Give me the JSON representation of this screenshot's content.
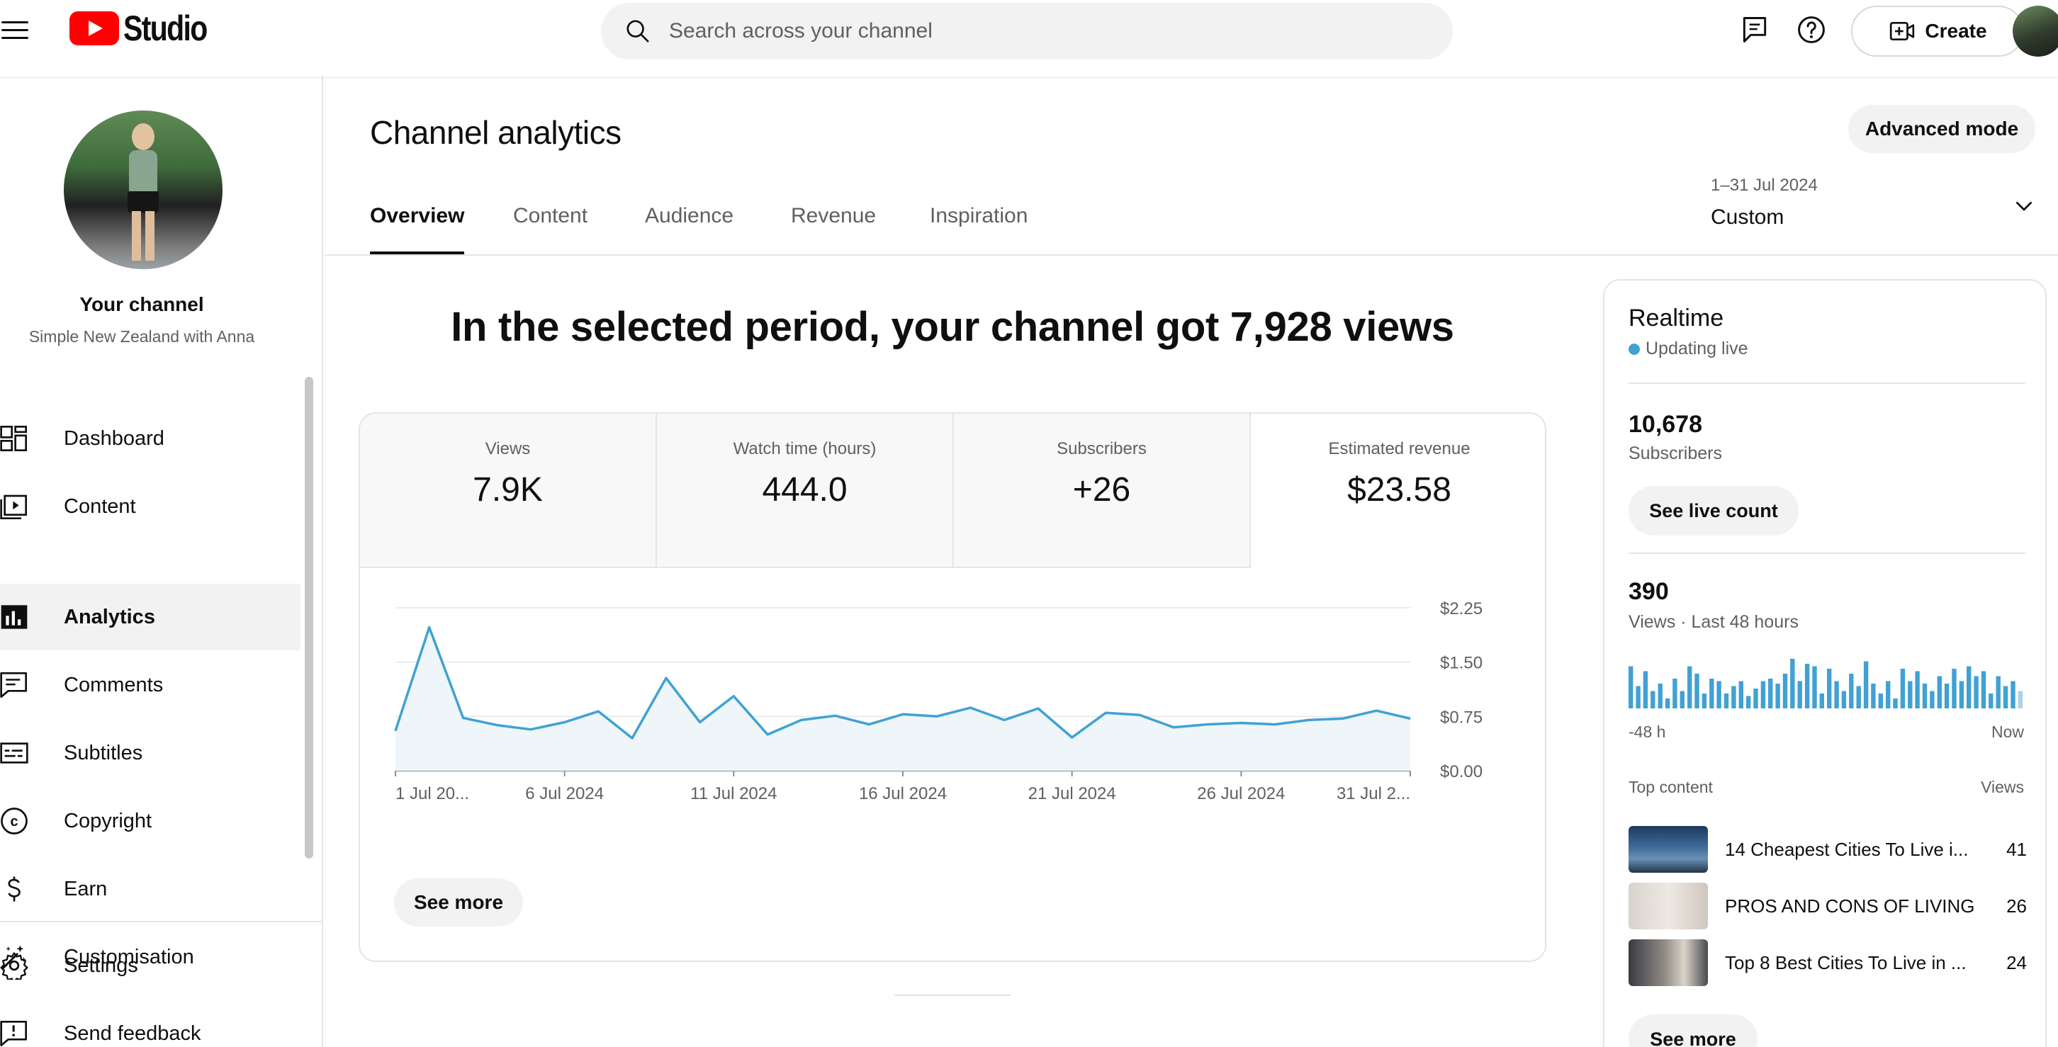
{
  "header": {
    "logo_text": "Studio",
    "search_placeholder": "Search across your channel",
    "create_label": "Create"
  },
  "sidebar": {
    "your_channel": "Your channel",
    "channel_name": "Simple New Zealand with Anna",
    "items": [
      {
        "label": "Dashboard",
        "icon": "dashboard-icon",
        "active": false
      },
      {
        "label": "Content",
        "icon": "content-icon",
        "active": false
      },
      {
        "label": "Analytics",
        "icon": "analytics-icon",
        "active": true
      },
      {
        "label": "Comments",
        "icon": "comments-icon",
        "active": false
      },
      {
        "label": "Subtitles",
        "icon": "subtitles-icon",
        "active": false
      },
      {
        "label": "Copyright",
        "icon": "copyright-icon",
        "active": false
      },
      {
        "label": "Earn",
        "icon": "earn-icon",
        "active": false
      },
      {
        "label": "Customisation",
        "icon": "customisation-icon",
        "active": false
      }
    ],
    "bottom_items": [
      {
        "label": "Settings",
        "icon": "settings-icon"
      },
      {
        "label": "Send feedback",
        "icon": "feedback-icon"
      }
    ]
  },
  "main": {
    "title": "Channel analytics",
    "advanced_mode": "Advanced mode",
    "tabs": [
      "Overview",
      "Content",
      "Audience",
      "Revenue",
      "Inspiration"
    ],
    "active_tab": "Overview",
    "date_range": {
      "sub": "1–31 Jul 2024",
      "value": "Custom"
    },
    "headline": "In the selected period, your channel got 7,928 views",
    "metrics": [
      {
        "label": "Views",
        "value": "7.9K"
      },
      {
        "label": "Watch time (hours)",
        "value": "444.0"
      },
      {
        "label": "Subscribers",
        "value": "+26"
      },
      {
        "label": "Estimated revenue",
        "value": "$23.58"
      }
    ],
    "see_more": "See more"
  },
  "chart_data": {
    "type": "area",
    "series": [
      {
        "name": "Estimated revenue",
        "values": [
          0.55,
          1.98,
          0.73,
          0.63,
          0.57,
          0.67,
          0.82,
          0.45,
          1.28,
          0.67,
          1.03,
          0.5,
          0.7,
          0.76,
          0.64,
          0.78,
          0.75,
          0.87,
          0.7,
          0.86,
          0.46,
          0.8,
          0.77,
          0.6,
          0.64,
          0.66,
          0.64,
          0.7,
          0.72,
          0.83,
          0.72
        ]
      }
    ],
    "x_tick_labels": [
      "1 Jul 20...",
      "6 Jul 2024",
      "11 Jul 2024",
      "16 Jul 2024",
      "21 Jul 2024",
      "26 Jul 2024",
      "31 Jul 2..."
    ],
    "x_tick_index": [
      0,
      5,
      10,
      15,
      20,
      25,
      30
    ],
    "y_tick_labels": [
      "$2.25",
      "$1.50",
      "$0.75",
      "$0.00"
    ],
    "y_tick_values": [
      2.25,
      1.5,
      0.75,
      0
    ],
    "ylim": [
      0,
      2.25
    ],
    "grid": true,
    "line_color": "#41a1d3",
    "fill_color": "#eef6fa"
  },
  "realtime": {
    "title": "Realtime",
    "live_text": "Updating live",
    "subscribers_value": "10,678",
    "subscribers_label": "Subscribers",
    "live_count_btn": "See live count",
    "views_value": "390",
    "views_label": "Views · Last 48 hours",
    "bar_values": [
      0.85,
      0.45,
      0.75,
      0.35,
      0.5,
      0.2,
      0.6,
      0.35,
      0.85,
      0.7,
      0.3,
      0.6,
      0.55,
      0.3,
      0.45,
      0.55,
      0.25,
      0.4,
      0.55,
      0.6,
      0.5,
      0.7,
      1.0,
      0.55,
      0.9,
      0.85,
      0.3,
      0.8,
      0.55,
      0.35,
      0.7,
      0.45,
      0.95,
      0.5,
      0.3,
      0.55,
      0.2,
      0.8,
      0.55,
      0.75,
      0.5,
      0.35,
      0.65,
      0.5,
      0.8,
      0.55,
      0.85,
      0.65,
      0.75,
      0.3,
      0.65,
      0.45,
      0.55,
      0.35
    ],
    "bar_color": "#41a1d3",
    "axis_left": "-48 h",
    "axis_right": "Now",
    "top_content_label": "Top content",
    "top_content_views_label": "Views",
    "top_content": [
      {
        "title": "14 Cheapest Cities To Live i...",
        "views": "41"
      },
      {
        "title": "PROS AND CONS OF LIVING...",
        "views": "26"
      },
      {
        "title": "Top 8 Best Cities To Live in ...",
        "views": "24"
      }
    ],
    "see_more": "See more"
  }
}
